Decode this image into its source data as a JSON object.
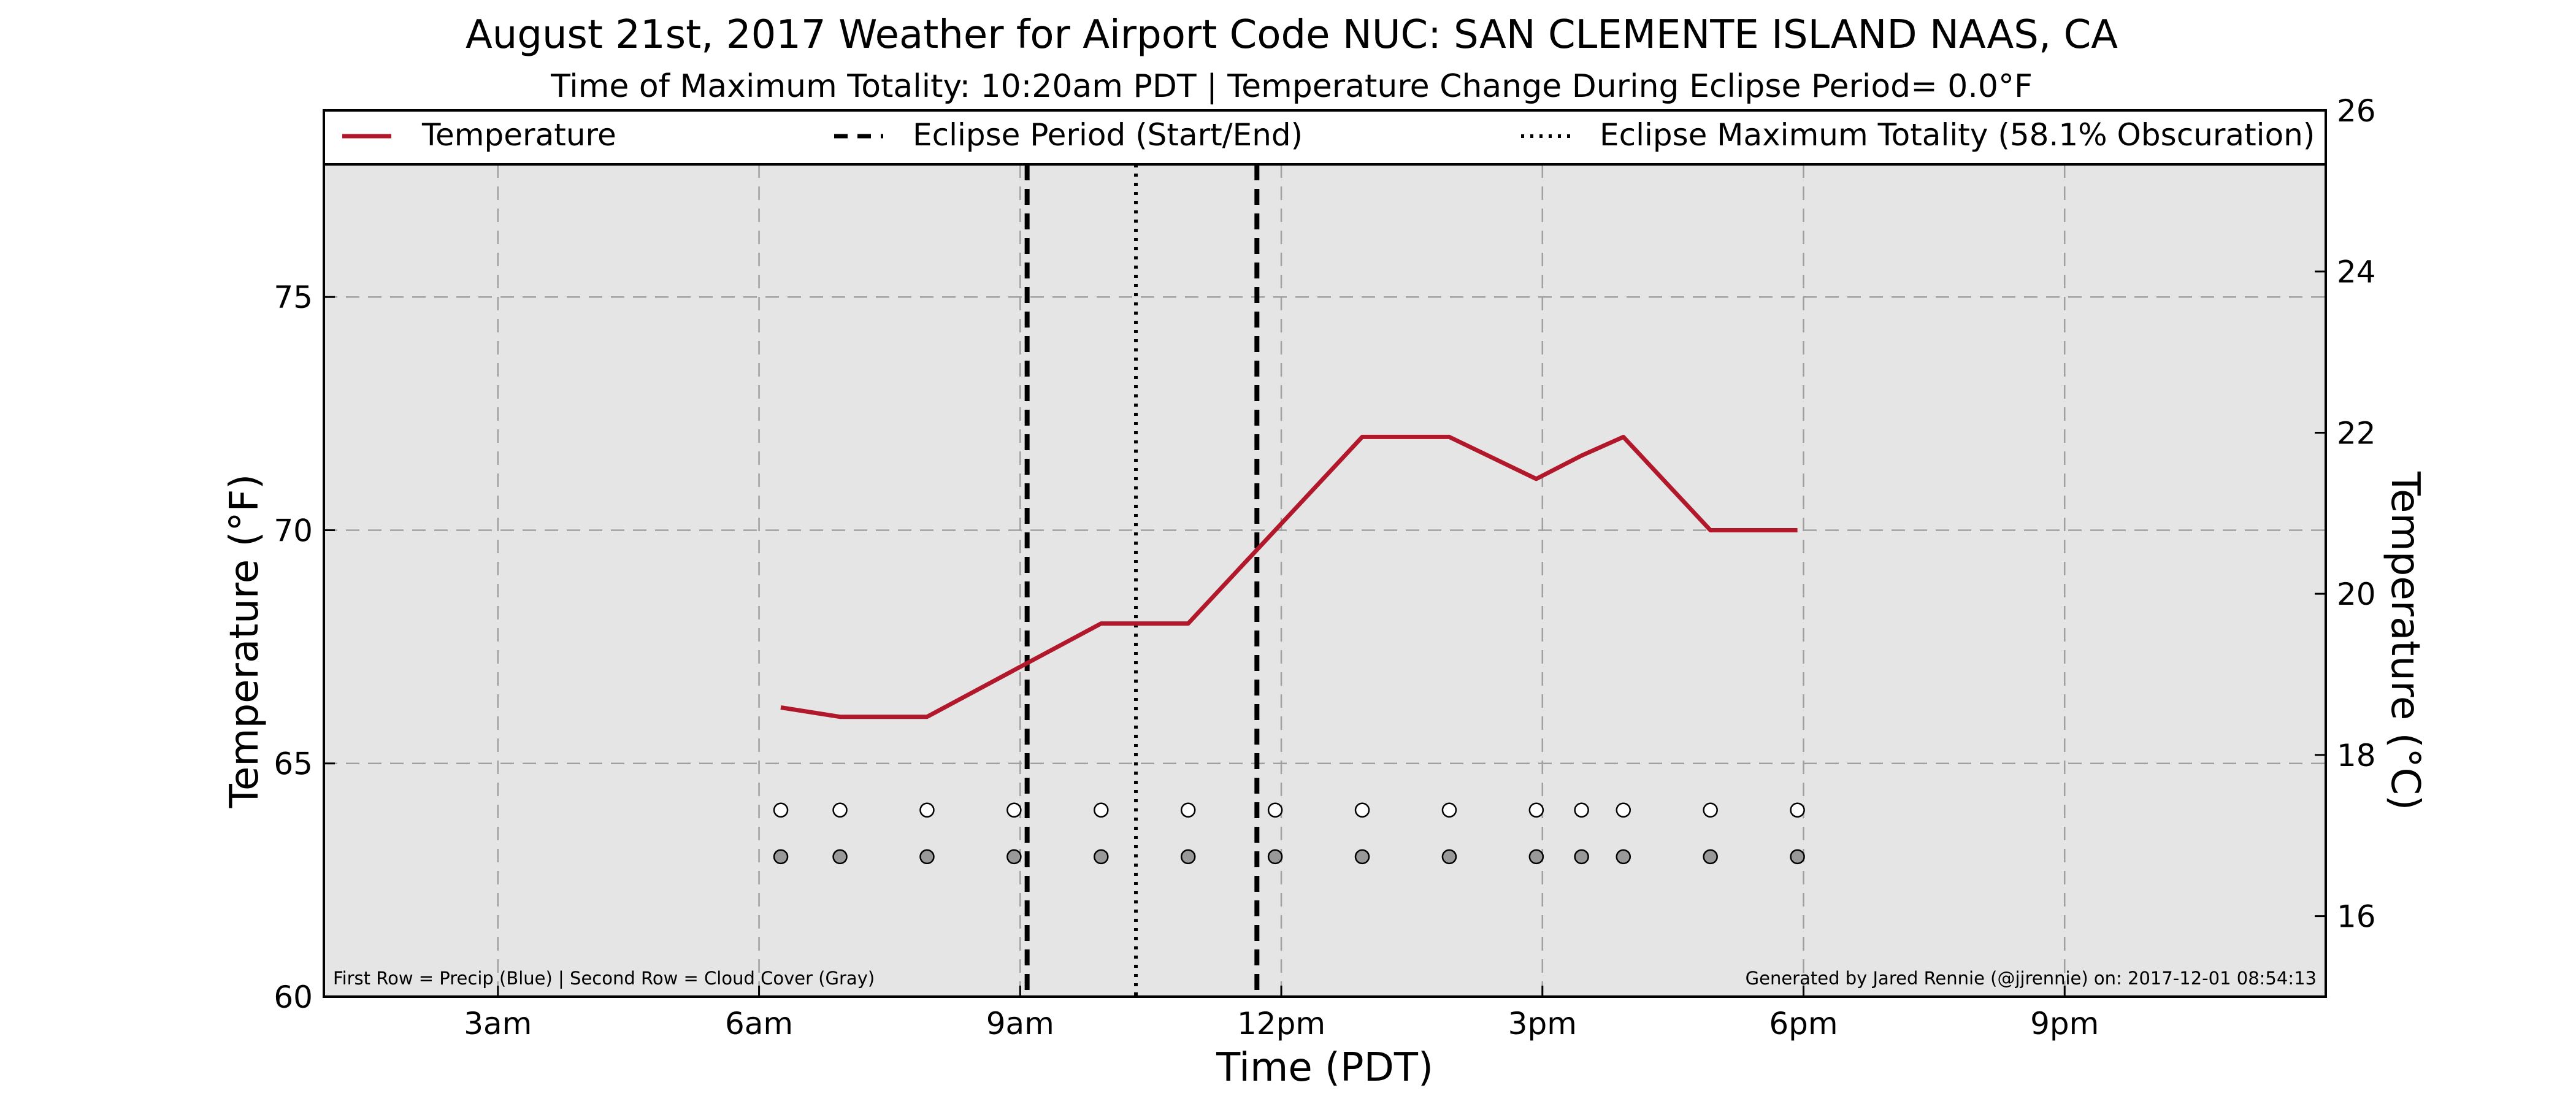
{
  "chart_data": {
    "type": "line",
    "title": "August 21st, 2017 Weather for Airport Code NUC: SAN CLEMENTE ISLAND NAAS, CA",
    "subtitle": "Time of Maximum Totality: 10:20am PDT | Temperature Change During Eclipse Period= 0.0°F",
    "xlabel": "Time (PDT)",
    "ylabel": "Temperature (°F)",
    "ylabel_right": "Temperature (°C)",
    "xlim": [
      1.0,
      24.0
    ],
    "ylim": [
      60,
      79
    ],
    "ylim_right": [
      15.0,
      26.0
    ],
    "x_ticks": [
      {
        "value": 3,
        "label": "3am"
      },
      {
        "value": 6,
        "label": "6am"
      },
      {
        "value": 9,
        "label": "9am"
      },
      {
        "value": 12,
        "label": "12pm"
      },
      {
        "value": 15,
        "label": "3pm"
      },
      {
        "value": 18,
        "label": "6pm"
      },
      {
        "value": 21,
        "label": "9pm"
      }
    ],
    "y_ticks": [
      60,
      65,
      70,
      75
    ],
    "y_ticks_right": [
      16,
      18,
      20,
      22,
      24,
      26
    ],
    "grid": true,
    "legend_placement": "top",
    "legend": [
      {
        "label": "Temperature",
        "style": "solid",
        "color": "#b2182b"
      },
      {
        "label": "Eclipse Period (Start/End)",
        "style": "dashed",
        "color": "#000000"
      },
      {
        "label": "Eclipse Maximum Totality (58.1% Obscuration)",
        "style": "dotted",
        "color": "#000000"
      }
    ],
    "series": [
      {
        "name": "Temperature",
        "color": "#b2182b",
        "x": [
          6.25,
          6.93,
          7.93,
          8.93,
          9.93,
          10.93,
          11.93,
          12.93,
          13.93,
          14.93,
          15.45,
          15.93,
          16.93,
          17.93
        ],
        "y": [
          66.2,
          66.0,
          66.0,
          67.0,
          68.0,
          68.0,
          70.0,
          72.0,
          72.0,
          71.1,
          71.6,
          72.0,
          70.0,
          70.0
        ]
      }
    ],
    "eclipse_start": 9.08,
    "eclipse_end": 11.72,
    "eclipse_max": 10.33,
    "observation_rows": {
      "precip_y": 64.0,
      "cloud_y": 63.0,
      "precip_color": "#ffffff",
      "cloud_color": "#999999",
      "x": [
        6.25,
        6.93,
        7.93,
        8.93,
        9.93,
        10.93,
        11.93,
        12.93,
        13.93,
        14.93,
        15.45,
        15.93,
        16.93,
        17.93
      ]
    },
    "footnote_left": "First Row = Precip (Blue) | Second Row = Cloud Cover (Gray)",
    "footnote_right": "Generated by Jared Rennie (@jjrennie) on: 2017-12-01 08:54:13",
    "colors": {
      "plot_background": "#e5e5e5",
      "grid": "#a0a0a0",
      "temperature": "#b2182b"
    }
  }
}
